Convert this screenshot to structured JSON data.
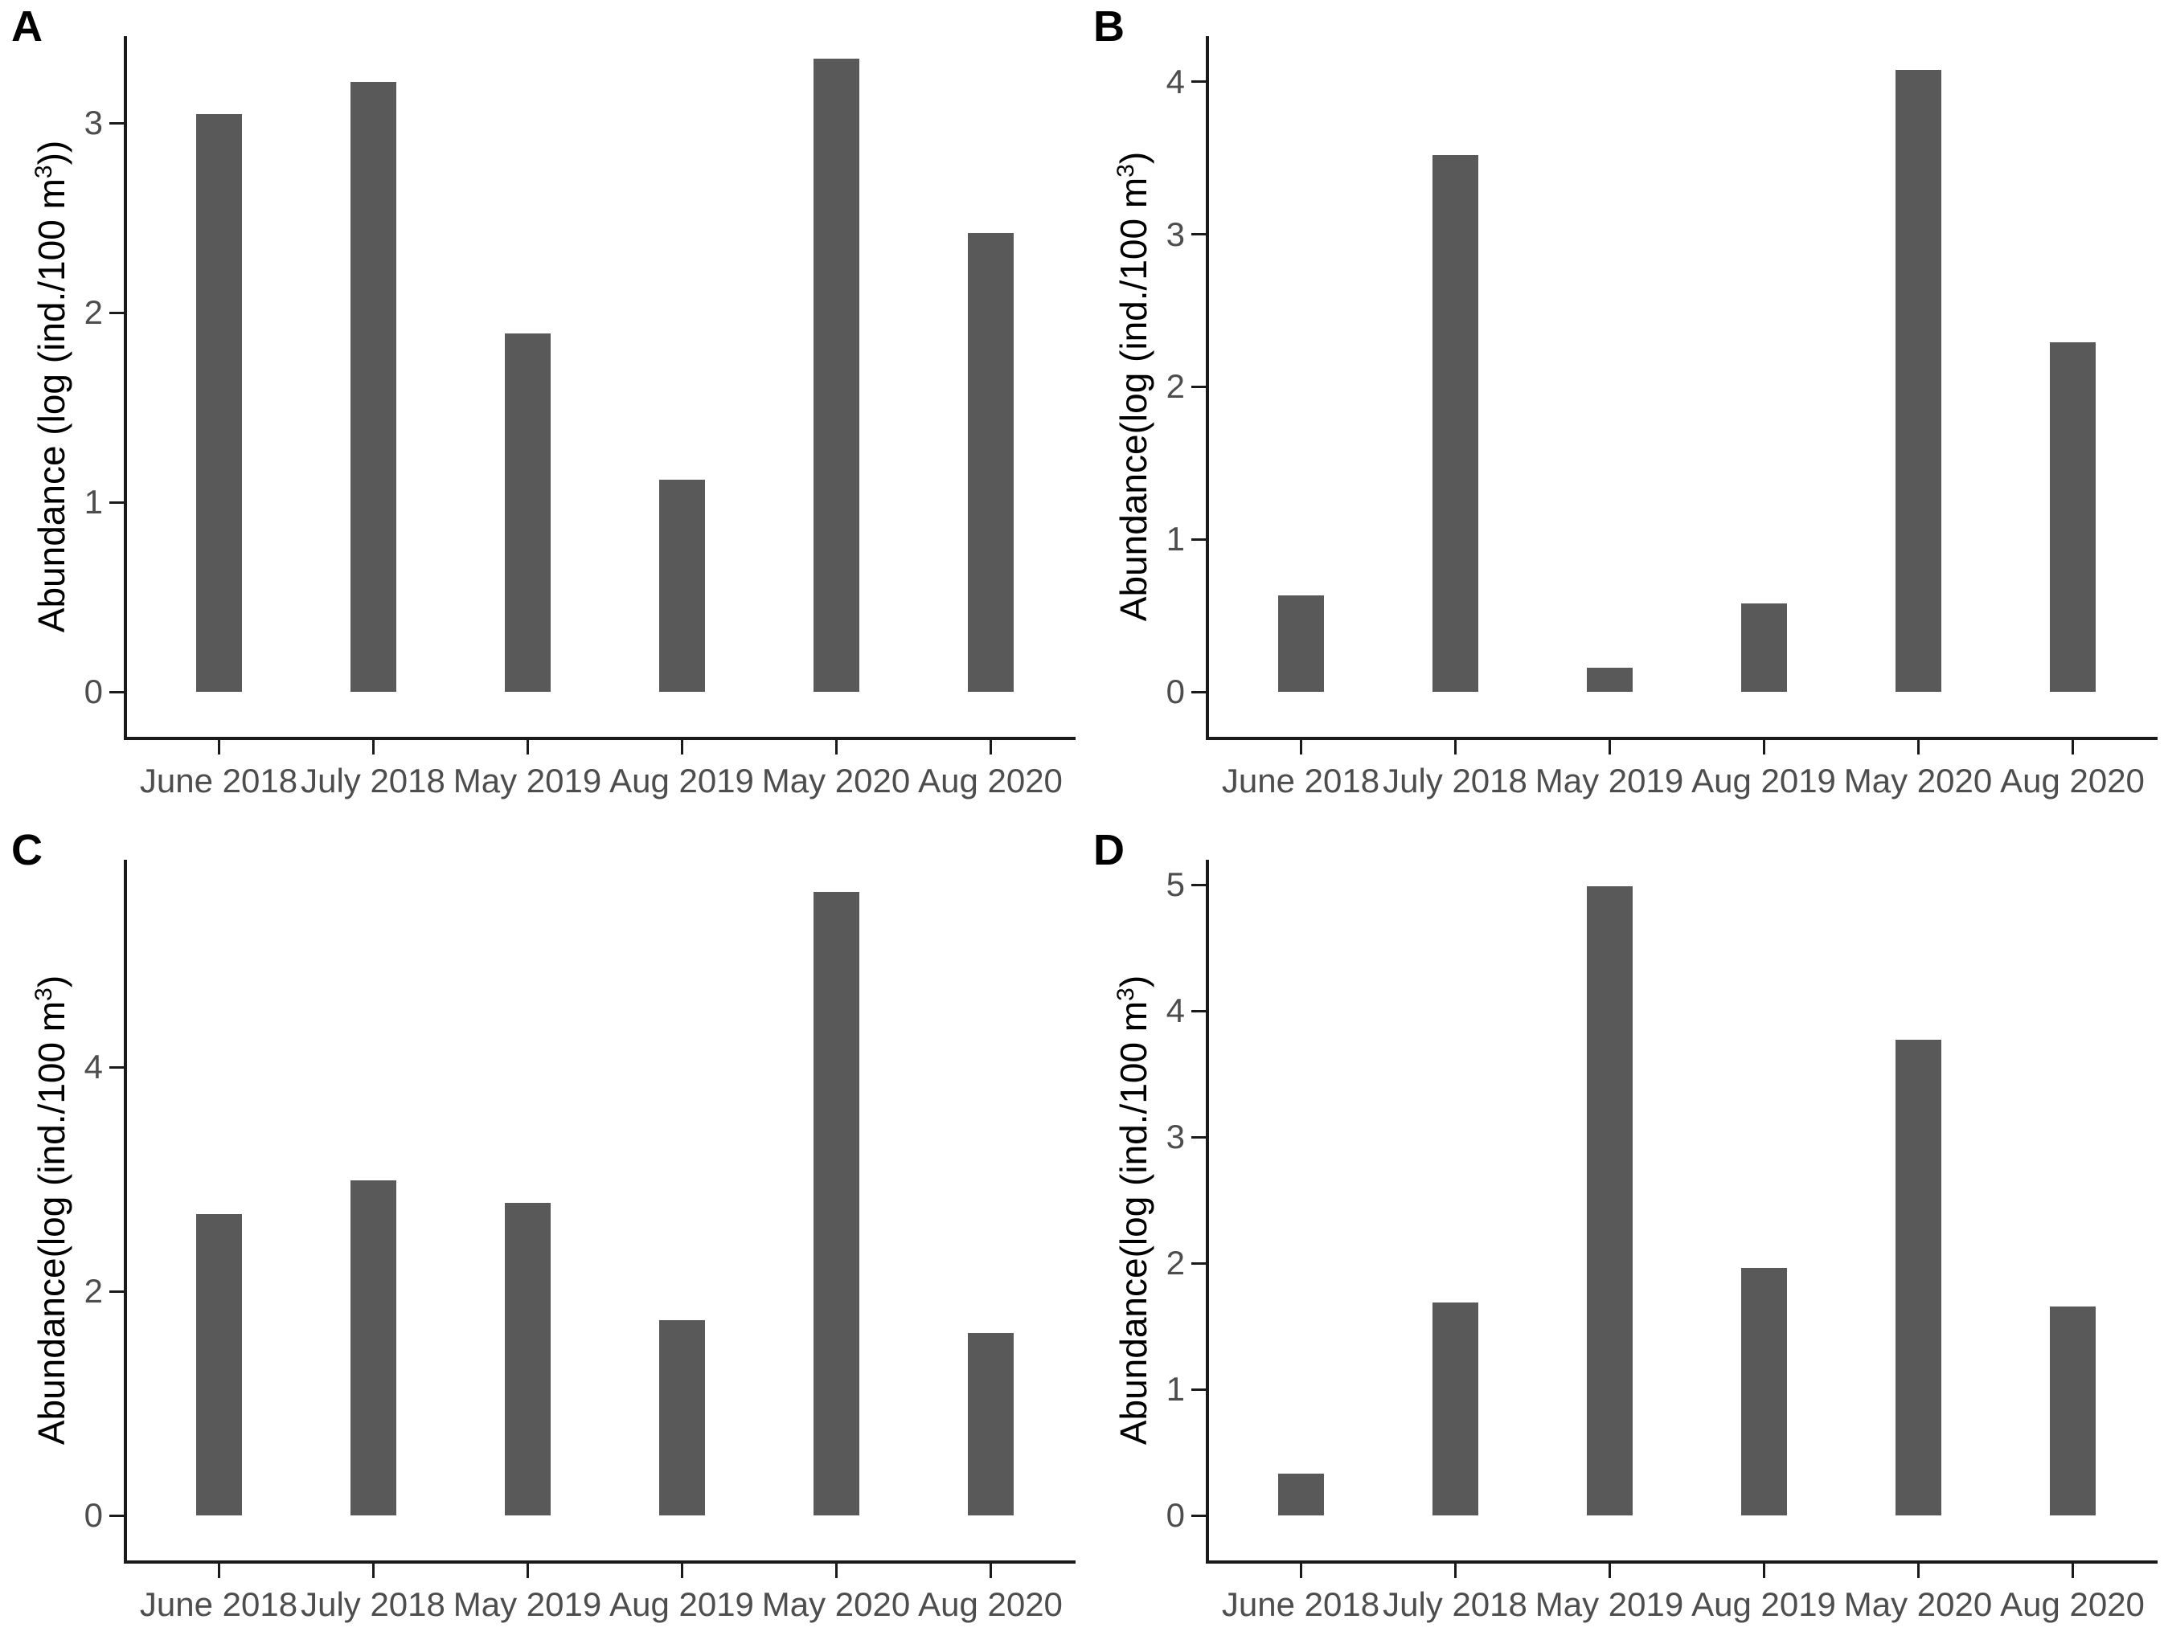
{
  "figure": {
    "background_color": "#ffffff",
    "bar_color": "#595959",
    "axis_line_color": "#1a1a1a",
    "axis_text_color": "#4d4d4d",
    "panel_label_color": "#000000"
  },
  "chart_data": [
    {
      "type": "bar",
      "panel": "A",
      "title": "",
      "xlabel": "",
      "ylabel": "Abundance (log (ind./100 m³))",
      "ylabel_parts": {
        "prefix": "Abundance (log (ind./100 m",
        "sup": "3",
        "suffix": "))"
      },
      "categories": [
        "June 2018",
        "July 2018",
        "May 2019",
        "Aug 2019",
        "May 2020",
        "Aug 2020"
      ],
      "values": [
        3.05,
        3.22,
        1.89,
        1.12,
        3.34,
        2.42
      ],
      "yticks": [
        0,
        1,
        2,
        3
      ],
      "ylim": [
        0,
        3.46
      ],
      "grid": false,
      "legend": false
    },
    {
      "type": "bar",
      "panel": "B",
      "title": "",
      "xlabel": "",
      "ylabel": "Abundance(log (ind./100 m³)",
      "ylabel_parts": {
        "prefix": "Abundance(log (ind./100 m",
        "sup": "3",
        "suffix": ")"
      },
      "categories": [
        "June 2018",
        "July 2018",
        "May 2019",
        "Aug 2019",
        "May 2020",
        "Aug 2020"
      ],
      "values": [
        0.63,
        3.52,
        0.16,
        0.58,
        4.08,
        2.29
      ],
      "yticks": [
        0,
        1,
        2,
        3,
        4
      ],
      "ylim": [
        0,
        4.3
      ],
      "grid": false,
      "legend": false
    },
    {
      "type": "bar",
      "panel": "C",
      "title": "",
      "xlabel": "",
      "ylabel": "Abundance(log (ind./100 m³)",
      "ylabel_parts": {
        "prefix": "Abundance(log (ind./100 m",
        "sup": "3",
        "suffix": ")"
      },
      "categories": [
        "June 2018",
        "July 2018",
        "May 2019",
        "Aug 2019",
        "May 2020",
        "Aug 2020"
      ],
      "values": [
        2.69,
        2.99,
        2.79,
        1.74,
        5.56,
        1.63
      ],
      "yticks": [
        0,
        2,
        4
      ],
      "ylim": [
        0,
        5.85
      ],
      "grid": false,
      "legend": false
    },
    {
      "type": "bar",
      "panel": "D",
      "title": "",
      "xlabel": "",
      "ylabel": "Abundance(log (ind./100 m³)",
      "ylabel_parts": {
        "prefix": "Abundance(log (ind./100 m",
        "sup": "3",
        "suffix": ")"
      },
      "categories": [
        "June 2018",
        "July 2018",
        "May 2019",
        "Aug 2019",
        "May 2020",
        "Aug 2020"
      ],
      "values": [
        0.33,
        1.69,
        4.99,
        1.96,
        3.77,
        1.66
      ],
      "yticks": [
        0,
        1,
        2,
        3,
        4,
        5
      ],
      "ylim": [
        0,
        5.2
      ],
      "grid": false,
      "legend": false
    }
  ]
}
